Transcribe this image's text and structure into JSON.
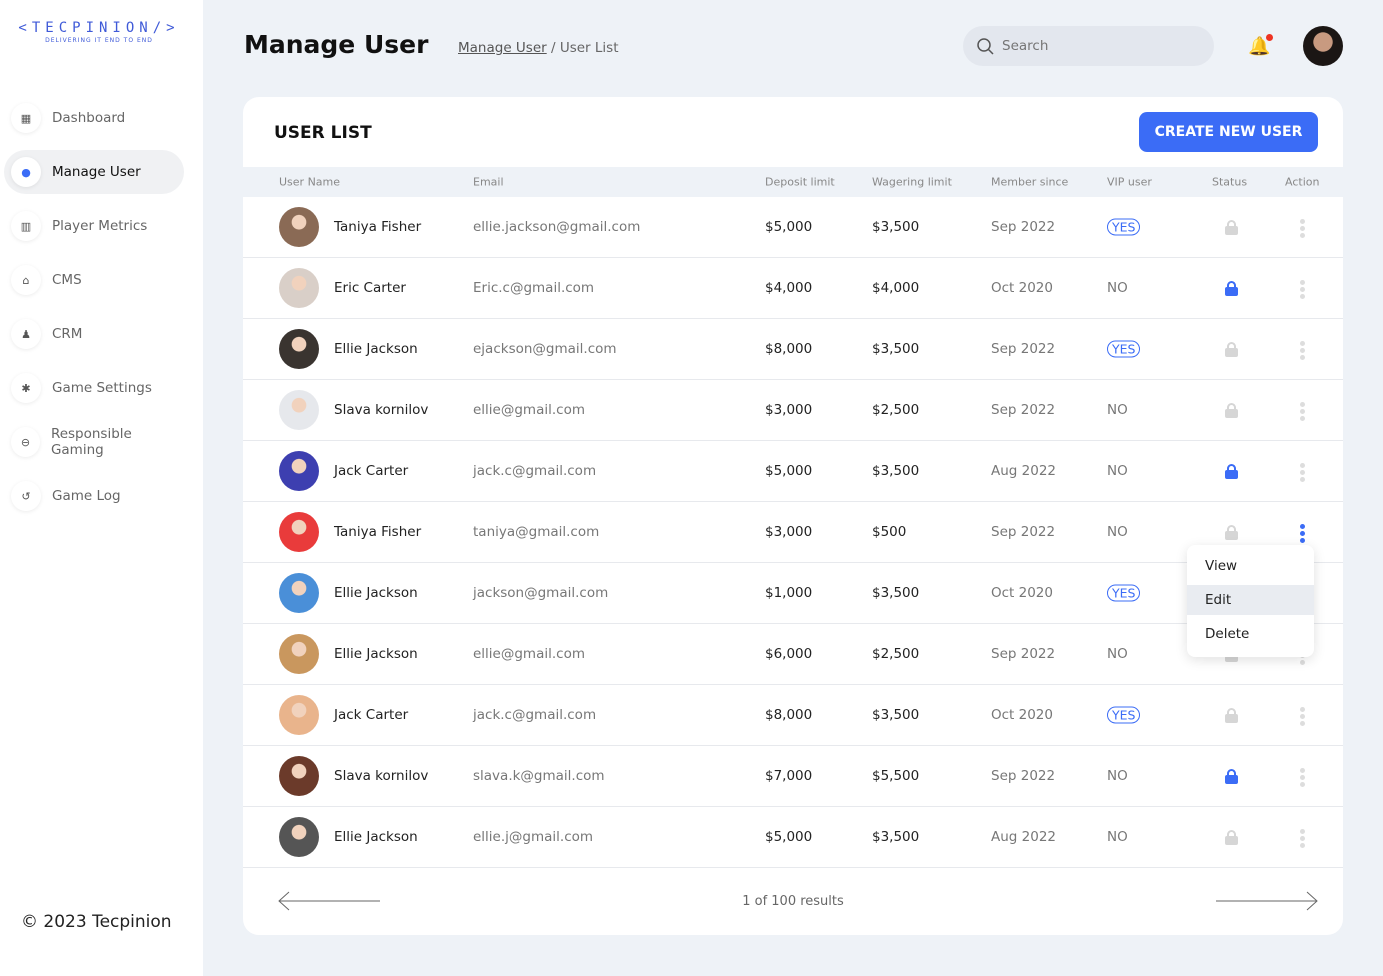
{
  "logo": {
    "text": "<TECPINION/>",
    "tagline": "DELIVERING IT END TO END"
  },
  "sidebar": {
    "items": [
      {
        "label": "Dashboard",
        "icon": "dashboard-icon",
        "glyph": "▦"
      },
      {
        "label": "Manage User",
        "icon": "user-icon",
        "glyph": "●",
        "active": true
      },
      {
        "label": "Player Metrics",
        "icon": "chart-icon",
        "glyph": "▥"
      },
      {
        "label": "CMS",
        "icon": "cms-icon",
        "glyph": "⌂"
      },
      {
        "label": "CRM",
        "icon": "crm-icon",
        "glyph": "♟"
      },
      {
        "label": "Game Settings",
        "icon": "gear-icon",
        "glyph": "✱"
      },
      {
        "label": "Responsible Gaming",
        "icon": "gamepad-icon",
        "glyph": "⊖"
      },
      {
        "label": "Game Log",
        "icon": "history-icon",
        "glyph": "↺"
      }
    ]
  },
  "footer": {
    "copyright": "© 2023 Tecpinion"
  },
  "header": {
    "title": "Manage User",
    "breadcrumb": [
      "Manage User",
      "User List"
    ],
    "search_placeholder": "Search"
  },
  "card": {
    "title": "USER LIST",
    "create_label": "CREATE NEW USER"
  },
  "columns": [
    "User Name",
    "Email",
    "Deposit limit",
    "Wagering limit",
    "Member since",
    "VIP user",
    "Status",
    "Action"
  ],
  "rows": [
    {
      "name": "Taniya Fisher",
      "email": "ellie.jackson@gmail.com",
      "deposit": "$5,000",
      "wagering": "$3,500",
      "since": "Sep 2022",
      "vip": "YES",
      "locked": false,
      "av": "#8a6a55"
    },
    {
      "name": "Eric Carter",
      "email": "Eric.c@gmail.com",
      "deposit": "$4,000",
      "wagering": "$4,000",
      "since": "Oct 2020",
      "vip": "NO",
      "locked": true,
      "av": "#d9cfc8"
    },
    {
      "name": "Ellie Jackson",
      "email": "ejackson@gmail.com",
      "deposit": "$8,000",
      "wagering": "$3,500",
      "since": "Sep 2022",
      "vip": "YES",
      "locked": false,
      "av": "#3a3430"
    },
    {
      "name": "Slava kornilov",
      "email": "ellie@gmail.com",
      "deposit": "$3,000",
      "wagering": "$2,500",
      "since": "Sep 2022",
      "vip": "NO",
      "locked": false,
      "av": "#e6e8ec"
    },
    {
      "name": "Jack Carter",
      "email": "jack.c@gmail.com",
      "deposit": "$5,000",
      "wagering": "$3,500",
      "since": "Aug 2022",
      "vip": "NO",
      "locked": true,
      "av": "#3d3fb0"
    },
    {
      "name": "Taniya Fisher",
      "email": "taniya@gmail.com",
      "deposit": "$3,000",
      "wagering": "$500",
      "since": "Sep 2022",
      "vip": "NO",
      "locked": false,
      "av": "#e93b3b",
      "menu_open": true
    },
    {
      "name": "Ellie Jackson",
      "email": "jackson@gmail.com",
      "deposit": "$1,000",
      "wagering": "$3,500",
      "since": "Oct 2020",
      "vip": "YES",
      "locked": false,
      "av": "#4a8fd8"
    },
    {
      "name": "Ellie Jackson",
      "email": "ellie@gmail.com",
      "deposit": "$6,000",
      "wagering": "$2,500",
      "since": "Sep 2022",
      "vip": "NO",
      "locked": false,
      "av": "#c9975e"
    },
    {
      "name": "Jack Carter",
      "email": "jack.c@gmail.com",
      "deposit": "$8,000",
      "wagering": "$3,500",
      "since": "Oct 2020",
      "vip": "YES",
      "locked": false,
      "av": "#e9b48c"
    },
    {
      "name": "Slava kornilov",
      "email": "slava.k@gmail.com",
      "deposit": "$7,000",
      "wagering": "$5,500",
      "since": "Sep 2022",
      "vip": "NO",
      "locked": true,
      "av": "#6b3a2a"
    },
    {
      "name": "Ellie Jackson",
      "email": "ellie.j@gmail.com",
      "deposit": "$5,000",
      "wagering": "$3,500",
      "since": "Aug 2022",
      "vip": "NO",
      "locked": false,
      "av": "#555"
    }
  ],
  "action_menu": [
    "View",
    "Edit",
    "Delete"
  ],
  "pagination": {
    "text": "1 of 100 results"
  },
  "colors": {
    "accent": "#3b6cf6",
    "lock_off": "#d6d6d6"
  }
}
